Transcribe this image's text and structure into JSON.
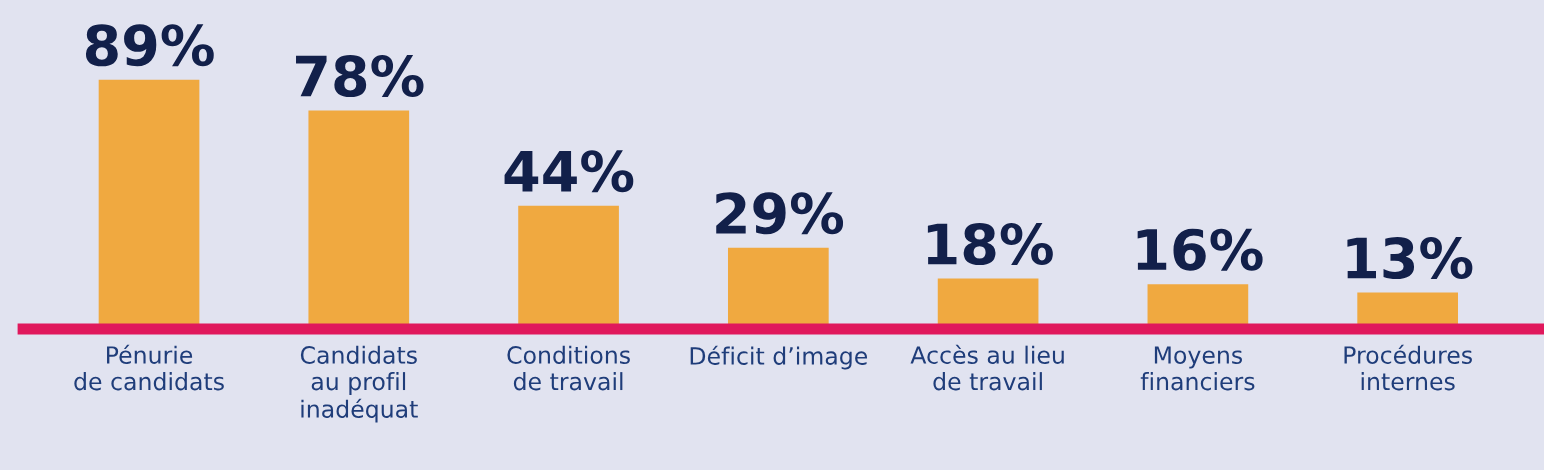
{
  "chart_data": {
    "type": "bar",
    "categories": [
      "Pénurie\nde candidats",
      "Candidats\nau profil\ninadéquat",
      "Conditions\nde travail",
      "Déficit d’image",
      "Accès au lieu\nde travail",
      "Moyens\nfinanciers",
      "Procédures\ninternes"
    ],
    "values": [
      89,
      78,
      44,
      29,
      18,
      16,
      13
    ],
    "value_labels": [
      "89%",
      "78%",
      "44%",
      "29%",
      "18%",
      "16%",
      "13%"
    ],
    "color": "#f0a940",
    "tick_labels": "x",
    "grid": false,
    "legend": false
  }
}
